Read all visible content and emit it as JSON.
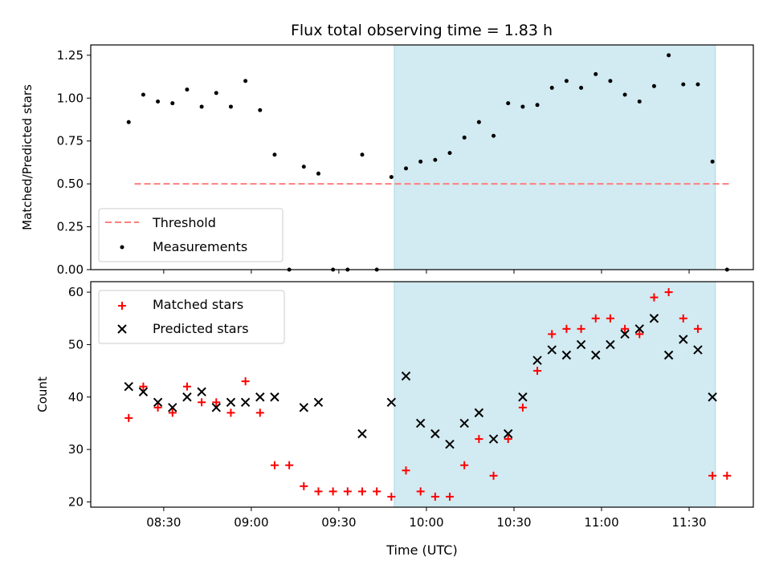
{
  "title": "Flux total observing time = 1.83 h",
  "colors": {
    "shade": "#add8e6",
    "threshold": "#ff7f7f",
    "matched": "#ff0000",
    "predicted": "#000000",
    "measurement": "#000000"
  },
  "chart_data": [
    {
      "type": "scatter",
      "ylabel": "Matched/Predicted stars",
      "ylim": [
        0,
        1.31
      ],
      "yticks": [
        0.0,
        0.25,
        0.5,
        0.75,
        1.0,
        1.25
      ],
      "ytick_labels": [
        "0.00",
        "0.25",
        "0.50",
        "0.75",
        "1.00",
        "1.25"
      ],
      "xlim": [
        "08:05",
        "11:52"
      ],
      "shaded_region": [
        "09:49",
        "11:39"
      ],
      "legend_position": "lower-left",
      "threshold": {
        "name": "Threshold",
        "y": 0.5,
        "x_range": [
          "08:20",
          "11:44"
        ]
      },
      "series": [
        {
          "name": "Measurements",
          "marker": "dot",
          "x": [
            "08:18",
            "08:23",
            "08:28",
            "08:33",
            "08:38",
            "08:43",
            "08:48",
            "08:53",
            "08:58",
            "09:03",
            "09:08",
            "09:13",
            "09:18",
            "09:23",
            "09:28",
            "09:33",
            "09:38",
            "09:43",
            "09:48",
            "09:53",
            "09:58",
            "10:03",
            "10:08",
            "10:13",
            "10:18",
            "10:23",
            "10:28",
            "10:33",
            "10:38",
            "10:43",
            "10:48",
            "10:53",
            "10:58",
            "11:03",
            "11:08",
            "11:13",
            "11:18",
            "11:23",
            "11:28",
            "11:33",
            "11:38",
            "11:43"
          ],
          "values": [
            0.86,
            1.02,
            0.98,
            0.97,
            1.05,
            0.95,
            1.03,
            0.95,
            1.1,
            0.93,
            0.67,
            0.0,
            0.6,
            0.56,
            0.0,
            0.0,
            0.67,
            0.0,
            0.54,
            0.59,
            0.63,
            0.64,
            0.68,
            0.77,
            0.86,
            0.78,
            0.97,
            0.95,
            0.96,
            1.06,
            1.1,
            1.06,
            1.14,
            1.1,
            1.02,
            0.98,
            1.07,
            1.25,
            1.08,
            1.08,
            0.63,
            0.0
          ]
        }
      ]
    },
    {
      "type": "scatter",
      "ylabel": "Count",
      "xlabel": "Time (UTC)",
      "ylim": [
        19,
        62
      ],
      "yticks": [
        20,
        30,
        40,
        50,
        60
      ],
      "ytick_labels": [
        "20",
        "30",
        "40",
        "50",
        "60"
      ],
      "xlim": [
        "08:05",
        "11:52"
      ],
      "xticks": [
        "08:30",
        "09:00",
        "09:30",
        "10:00",
        "10:30",
        "11:00",
        "11:30"
      ],
      "shaded_region": [
        "09:49",
        "11:39"
      ],
      "legend_position": "upper-left",
      "series": [
        {
          "name": "Matched stars",
          "marker": "plus",
          "x": [
            "08:18",
            "08:23",
            "08:28",
            "08:33",
            "08:38",
            "08:43",
            "08:48",
            "08:53",
            "08:58",
            "09:03",
            "09:08",
            "09:13",
            "09:18",
            "09:23",
            "09:28",
            "09:33",
            "09:38",
            "09:43",
            "09:48",
            "09:53",
            "09:58",
            "10:03",
            "10:08",
            "10:13",
            "10:18",
            "10:23",
            "10:28",
            "10:33",
            "10:38",
            "10:43",
            "10:48",
            "10:53",
            "10:58",
            "11:03",
            "11:08",
            "11:13",
            "11:18",
            "11:23",
            "11:28",
            "11:33",
            "11:38",
            "11:43"
          ],
          "values": [
            36,
            42,
            38,
            37,
            42,
            39,
            39,
            37,
            43,
            37,
            27,
            27,
            23,
            22,
            22,
            22,
            22,
            22,
            21,
            26,
            22,
            21,
            21,
            27,
            32,
            25,
            32,
            38,
            45,
            52,
            53,
            53,
            55,
            55,
            53,
            52,
            59,
            60,
            55,
            53,
            25,
            25
          ]
        },
        {
          "name": "Predicted stars",
          "marker": "x",
          "x": [
            "08:18",
            "08:23",
            "08:28",
            "08:33",
            "08:38",
            "08:43",
            "08:48",
            "08:53",
            "08:58",
            "09:03",
            "09:08",
            "09:18",
            "09:23",
            "09:38",
            "09:48",
            "09:53",
            "09:58",
            "10:03",
            "10:08",
            "10:13",
            "10:18",
            "10:23",
            "10:28",
            "10:33",
            "10:38",
            "10:43",
            "10:48",
            "10:53",
            "10:58",
            "11:03",
            "11:08",
            "11:13",
            "11:18",
            "11:23",
            "11:28",
            "11:33",
            "11:38"
          ],
          "values": [
            42,
            41,
            39,
            38,
            40,
            41,
            38,
            39,
            39,
            40,
            40,
            38,
            39,
            33,
            39,
            44,
            35,
            33,
            31,
            35,
            37,
            32,
            33,
            40,
            47,
            49,
            48,
            50,
            48,
            50,
            52,
            53,
            55,
            48,
            51,
            49,
            40
          ]
        }
      ]
    }
  ]
}
